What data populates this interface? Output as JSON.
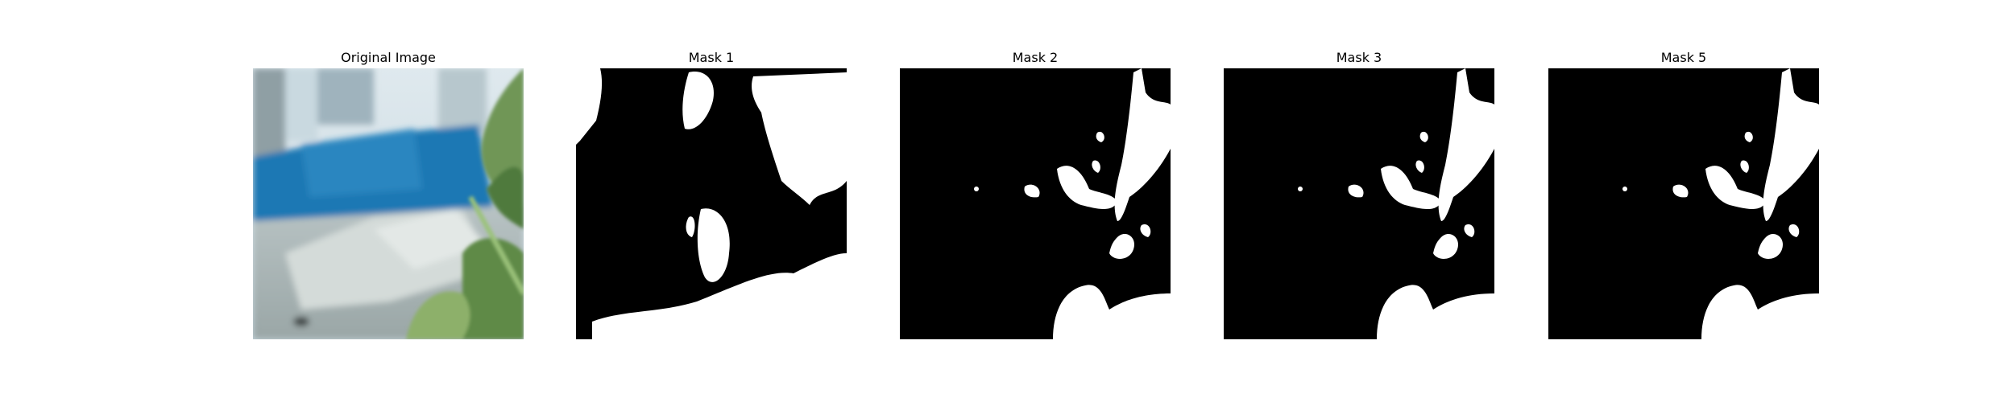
{
  "figure": {
    "panels": [
      {
        "title": "Original Image",
        "image": "photo-blurred-bench-with-green-leaves"
      },
      {
        "title": "Mask 1",
        "image": "binary-segmentation-mask"
      },
      {
        "title": "Mask 2",
        "image": "binary-segmentation-mask"
      },
      {
        "title": "Mask 3",
        "image": "binary-segmentation-mask"
      },
      {
        "title": "Mask 5",
        "image": "binary-segmentation-mask"
      }
    ],
    "colors": {
      "mask_background": "#000000",
      "mask_foreground": "#ffffff",
      "photo_blue": "#1f78b4",
      "leaf_green": "#5e8a47"
    }
  }
}
